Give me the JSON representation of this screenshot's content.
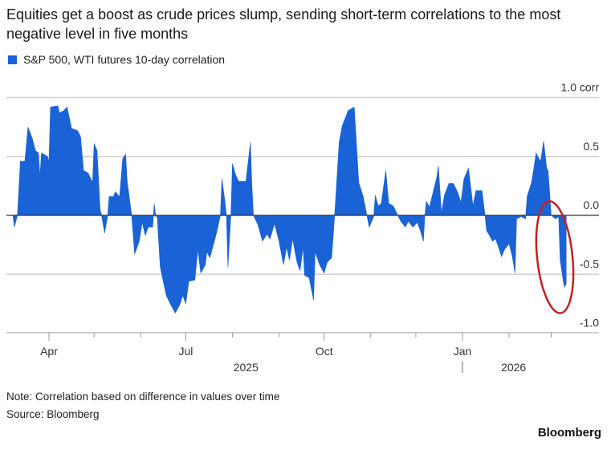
{
  "title": "Equities get a boost as crude prices slump, sending short-term correlations to the most negative level in five months",
  "legend_label": "S&P 500, WTI futures 10-day correlation",
  "note": "Note: Correlation based on difference in values over time",
  "source": "Source: Bloomberg",
  "brand": "Bloomberg",
  "colors": {
    "series": "#1a63d6",
    "annotation": "#c8201e",
    "grid": "#cfcfcf",
    "axis": "#555555"
  },
  "chart_data": {
    "type": "area",
    "title": "Equities get a boost as crude prices slump, sending short-term correlations to the most negative level in five months",
    "ylabel": "corr",
    "ylim": [
      -1.0,
      1.0
    ],
    "yticks": [
      {
        "value": 1.0,
        "label": "1.0 corr"
      },
      {
        "value": 0.5,
        "label": "0.5"
      },
      {
        "value": 0.0,
        "label": "0.0"
      },
      {
        "value": -0.5,
        "label": "-0.5"
      },
      {
        "value": -1.0,
        "label": "-1.0"
      }
    ],
    "xticks": [
      {
        "date": "2025-04-01",
        "label": "Apr"
      },
      {
        "date": "2025-07-01",
        "label": "Jul"
      },
      {
        "date": "2025-10-01",
        "label": "Oct"
      },
      {
        "date": "2026-01-01",
        "label": "Jan"
      }
    ],
    "year_labels": [
      {
        "label": "2025"
      },
      {
        "label": "2026"
      }
    ],
    "grid": true,
    "legend_position": "top-left",
    "annotation": "red ellipse around the latest negative dip",
    "series": [
      {
        "name": "S&P 500, WTI futures 10-day correlation",
        "points": [
          [
            "2025-03-04",
            0
          ],
          [
            "2025-03-08",
            0
          ],
          [
            "2025-03-09",
            -0.1
          ],
          [
            "2025-03-11",
            0
          ],
          [
            "2025-03-13",
            0.46
          ],
          [
            "2025-03-16",
            0.46
          ],
          [
            "2025-03-18",
            0.75
          ],
          [
            "2025-03-21",
            0.65
          ],
          [
            "2025-03-23",
            0.55
          ],
          [
            "2025-03-25",
            0.53
          ],
          [
            "2025-03-26",
            0.33
          ],
          [
            "2025-03-27",
            0.53
          ],
          [
            "2025-03-31",
            0.5
          ],
          [
            "2025-04-01",
            0.46
          ],
          [
            "2025-04-02",
            0.92
          ],
          [
            "2025-04-07",
            0.93
          ],
          [
            "2025-04-08",
            0.87
          ],
          [
            "2025-04-11",
            0.89
          ],
          [
            "2025-04-13",
            0.92
          ],
          [
            "2025-04-16",
            0.74
          ],
          [
            "2025-04-20",
            0.72
          ],
          [
            "2025-04-22",
            0.67
          ],
          [
            "2025-04-24",
            0.38
          ],
          [
            "2025-04-27",
            0.36
          ],
          [
            "2025-04-30",
            0.28
          ],
          [
            "2025-05-01",
            0.61
          ],
          [
            "2025-05-03",
            0.55
          ],
          [
            "2025-05-05",
            0.05
          ],
          [
            "2025-05-06",
            0
          ],
          [
            "2025-05-08",
            -0.15
          ],
          [
            "2025-05-10",
            -0.01
          ],
          [
            "2025-05-11",
            0.16
          ],
          [
            "2025-05-14",
            0.16
          ],
          [
            "2025-05-15",
            0.2
          ],
          [
            "2025-05-18",
            0.16
          ],
          [
            "2025-05-20",
            0.48
          ],
          [
            "2025-05-22",
            0.52
          ],
          [
            "2025-05-23",
            0.29
          ],
          [
            "2025-05-26",
            0
          ],
          [
            "2025-05-28",
            -0.33
          ],
          [
            "2025-05-31",
            -0.22
          ],
          [
            "2025-06-02",
            -0.06
          ],
          [
            "2025-06-04",
            -0.17
          ],
          [
            "2025-06-06",
            -0.1
          ],
          [
            "2025-06-09",
            -0.1
          ],
          [
            "2025-06-10",
            0.1
          ],
          [
            "2025-06-11",
            -0.01
          ],
          [
            "2025-06-12",
            -0.01
          ],
          [
            "2025-06-14",
            -0.44
          ],
          [
            "2025-06-16",
            -0.56
          ],
          [
            "2025-06-18",
            -0.68
          ],
          [
            "2025-06-21",
            -0.76
          ],
          [
            "2025-06-24",
            -0.83
          ],
          [
            "2025-06-27",
            -0.76
          ],
          [
            "2025-06-29",
            -0.68
          ],
          [
            "2025-07-01",
            -0.75
          ],
          [
            "2025-07-03",
            -0.56
          ],
          [
            "2025-07-07",
            -0.55
          ],
          [
            "2025-07-09",
            -0.29
          ],
          [
            "2025-07-11",
            -0.49
          ],
          [
            "2025-07-14",
            -0.42
          ],
          [
            "2025-07-15",
            -0.31
          ],
          [
            "2025-07-17",
            -0.36
          ],
          [
            "2025-07-20",
            -0.22
          ],
          [
            "2025-07-22",
            -0.12
          ],
          [
            "2025-07-24",
            0
          ],
          [
            "2025-07-25",
            0.31
          ],
          [
            "2025-07-27",
            0.12
          ],
          [
            "2025-07-28",
            0
          ],
          [
            "2025-07-29",
            -0.44
          ],
          [
            "2025-07-30",
            -0.22
          ],
          [
            "2025-07-31",
            0
          ],
          [
            "2025-08-01",
            0.44
          ],
          [
            "2025-08-03",
            0.35
          ],
          [
            "2025-08-05",
            0.29
          ],
          [
            "2025-08-10",
            0.29
          ],
          [
            "2025-08-13",
            0.62
          ],
          [
            "2025-08-14",
            0.24
          ],
          [
            "2025-08-15",
            0
          ],
          [
            "2025-08-18",
            -0.08
          ],
          [
            "2025-08-21",
            -0.22
          ],
          [
            "2025-08-24",
            -0.16
          ],
          [
            "2025-08-26",
            -0.2
          ],
          [
            "2025-08-29",
            -0.07
          ],
          [
            "2025-09-01",
            -0.22
          ],
          [
            "2025-09-04",
            -0.42
          ],
          [
            "2025-09-06",
            -0.27
          ],
          [
            "2025-09-08",
            -0.38
          ],
          [
            "2025-09-10",
            -0.2
          ],
          [
            "2025-09-13",
            -0.4
          ],
          [
            "2025-09-15",
            -0.47
          ],
          [
            "2025-09-17",
            -0.27
          ],
          [
            "2025-09-18",
            -0.51
          ],
          [
            "2025-09-21",
            -0.53
          ],
          [
            "2025-09-24",
            -0.72
          ],
          [
            "2025-09-25",
            -0.31
          ],
          [
            "2025-09-28",
            -0.42
          ],
          [
            "2025-10-01",
            -0.49
          ],
          [
            "2025-10-03",
            -0.4
          ],
          [
            "2025-10-06",
            -0.36
          ],
          [
            "2025-10-08",
            0
          ],
          [
            "2025-10-11",
            0.62
          ],
          [
            "2025-10-13",
            0.76
          ],
          [
            "2025-10-17",
            0.89
          ],
          [
            "2025-10-21",
            0.92
          ],
          [
            "2025-10-22",
            0.72
          ],
          [
            "2025-10-24",
            0.28
          ],
          [
            "2025-10-27",
            0.16
          ],
          [
            "2025-10-29",
            0.03
          ],
          [
            "2025-10-31",
            -0.1
          ],
          [
            "2025-11-03",
            -0.01
          ],
          [
            "2025-11-04",
            0.17
          ],
          [
            "2025-11-06",
            0.08
          ],
          [
            "2025-11-08",
            0.1
          ],
          [
            "2025-11-11",
            0.38
          ],
          [
            "2025-11-13",
            0.1
          ],
          [
            "2025-11-16",
            0.08
          ],
          [
            "2025-11-19",
            0
          ],
          [
            "2025-11-21",
            -0.05
          ],
          [
            "2025-11-24",
            -0.1
          ],
          [
            "2025-11-26",
            -0.05
          ],
          [
            "2025-11-29",
            -0.1
          ],
          [
            "2025-12-02",
            -0.06
          ],
          [
            "2025-12-04",
            -0.13
          ],
          [
            "2025-12-06",
            -0.22
          ],
          [
            "2025-12-07",
            0
          ],
          [
            "2025-12-08",
            0.12
          ],
          [
            "2025-12-10",
            0.07
          ],
          [
            "2025-12-12",
            0.17
          ],
          [
            "2025-12-15",
            0.33
          ],
          [
            "2025-12-16",
            0.42
          ],
          [
            "2025-12-18",
            0.02
          ],
          [
            "2025-12-20",
            0.17
          ],
          [
            "2025-12-23",
            0.27
          ],
          [
            "2025-12-26",
            0.27
          ],
          [
            "2025-12-29",
            0.19
          ],
          [
            "2025-12-31",
            0.11
          ],
          [
            "2026-01-02",
            0.31
          ],
          [
            "2026-01-05",
            0.4
          ],
          [
            "2026-01-07",
            0.19
          ],
          [
            "2026-01-08",
            0.08
          ],
          [
            "2026-01-10",
            0.21
          ],
          [
            "2026-01-14",
            0.21
          ],
          [
            "2026-01-16",
            0
          ],
          [
            "2026-01-17",
            -0.13
          ],
          [
            "2026-01-19",
            -0.17
          ],
          [
            "2026-01-21",
            -0.22
          ],
          [
            "2026-01-23",
            -0.2
          ],
          [
            "2026-01-25",
            -0.27
          ],
          [
            "2026-01-27",
            -0.35
          ],
          [
            "2026-01-29",
            -0.29
          ],
          [
            "2026-02-01",
            -0.24
          ],
          [
            "2026-02-03",
            -0.34
          ],
          [
            "2026-02-05",
            -0.49
          ],
          [
            "2026-02-06",
            -0.03
          ],
          [
            "2026-02-09",
            -0.01
          ],
          [
            "2026-02-12",
            -0.03
          ],
          [
            "2026-02-13",
            0.16
          ],
          [
            "2026-02-16",
            0.28
          ],
          [
            "2026-02-19",
            0.53
          ],
          [
            "2026-02-20",
            0.5
          ],
          [
            "2026-02-22",
            0.46
          ],
          [
            "2026-02-24",
            0.63
          ],
          [
            "2026-02-26",
            0.4
          ],
          [
            "2026-02-27",
            0.38
          ],
          [
            "2026-03-01",
            0
          ],
          [
            "2026-03-04",
            -0.03
          ],
          [
            "2026-03-06",
            -0.01
          ],
          [
            "2026-03-07",
            -0.38
          ],
          [
            "2026-03-09",
            -0.56
          ],
          [
            "2026-03-10",
            -0.61
          ],
          [
            "2026-03-11",
            -0.58
          ]
        ]
      }
    ]
  }
}
